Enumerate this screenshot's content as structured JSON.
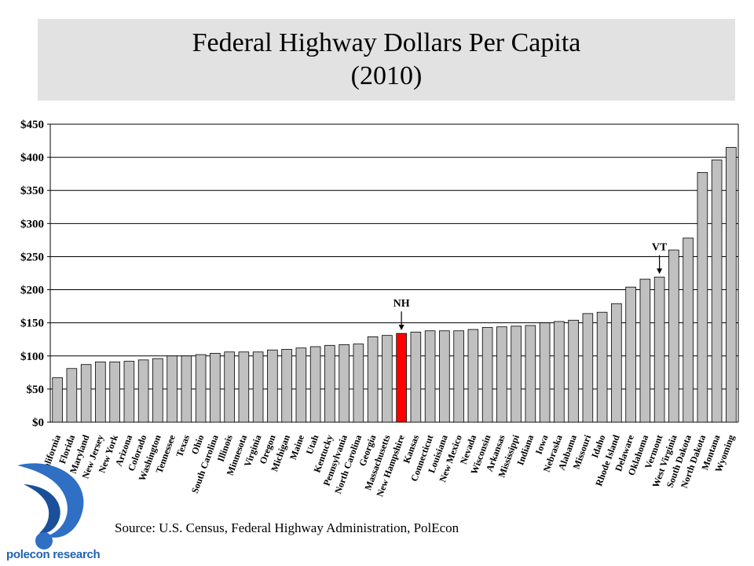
{
  "chart_data": {
    "type": "bar",
    "title": "Federal Highway Dollars Per Capita",
    "subtitle": "(2010)",
    "xlabel": "",
    "ylabel": "",
    "ylim": [
      0,
      450
    ],
    "yticks": [
      0,
      50,
      100,
      150,
      200,
      250,
      300,
      350,
      400,
      450
    ],
    "ytick_labels": [
      "$0",
      "$50",
      "$100",
      "$150",
      "$200",
      "$250",
      "$300",
      "$350",
      "$400",
      "$450"
    ],
    "grid": true,
    "bar_color": "#c0c0c0",
    "highlight_color": "#ff0000",
    "categories": [
      "California",
      "Florida",
      "Maryland",
      "New Jersey",
      "New York",
      "Arizona",
      "Colorado",
      "Washington",
      "Tennessee",
      "Texas",
      "Ohio",
      "South Carolina",
      "Illinois",
      "Minnesota",
      "Virginia",
      "Oregon",
      "Michigan",
      "Maine",
      "Utah",
      "Kentucky",
      "Pennsylvania",
      "North Carolina",
      "Georgia",
      "Massachusetts",
      "New Hampshire",
      "Kansas",
      "Connecticut",
      "Louisiana",
      "New Mexico",
      "Nevada",
      "Wisconsin",
      "Arkansas",
      "Mississippi",
      "Indiana",
      "Iowa",
      "Nebraska",
      "Alabama",
      "Missouri",
      "Idaho",
      "Rhode Island",
      "Delaware",
      "Oklahoma",
      "Vermont",
      "West Virginia",
      "South Dakota",
      "North Dakota",
      "Montana",
      "Wyoming"
    ],
    "values": [
      67,
      81,
      87,
      91,
      91,
      92,
      94,
      96,
      100,
      100,
      102,
      104,
      106,
      106,
      106,
      109,
      110,
      112,
      114,
      116,
      117,
      118,
      129,
      131,
      134,
      136,
      138,
      138,
      138,
      140,
      143,
      144,
      145,
      146,
      150,
      152,
      154,
      164,
      166,
      179,
      204,
      216,
      219,
      260,
      278,
      377,
      396,
      415
    ],
    "annotations": [
      {
        "label": "NH",
        "category": "New Hampshire"
      },
      {
        "label": "VT",
        "category": "Vermont"
      }
    ],
    "highlight": "New Hampshire"
  },
  "source": "Source: U.S. Census, Federal Highway Administration, PolEcon",
  "logo_text": "polecon research"
}
